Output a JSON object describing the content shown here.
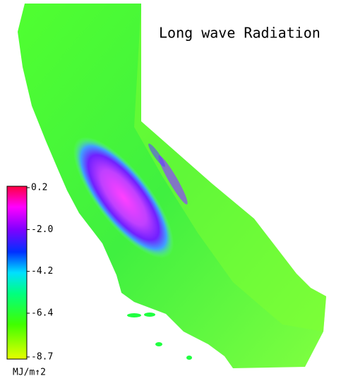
{
  "title": "Long wave Radiation",
  "colorbar": {
    "lim": [
      -8.7,
      0.2
    ],
    "ticks": [
      0.2,
      {
        "value": -2.0,
        "label": "-2.0"
      },
      -4.2,
      -6.4,
      -8.7
    ],
    "unit": "MJ/m↑2"
  }
}
